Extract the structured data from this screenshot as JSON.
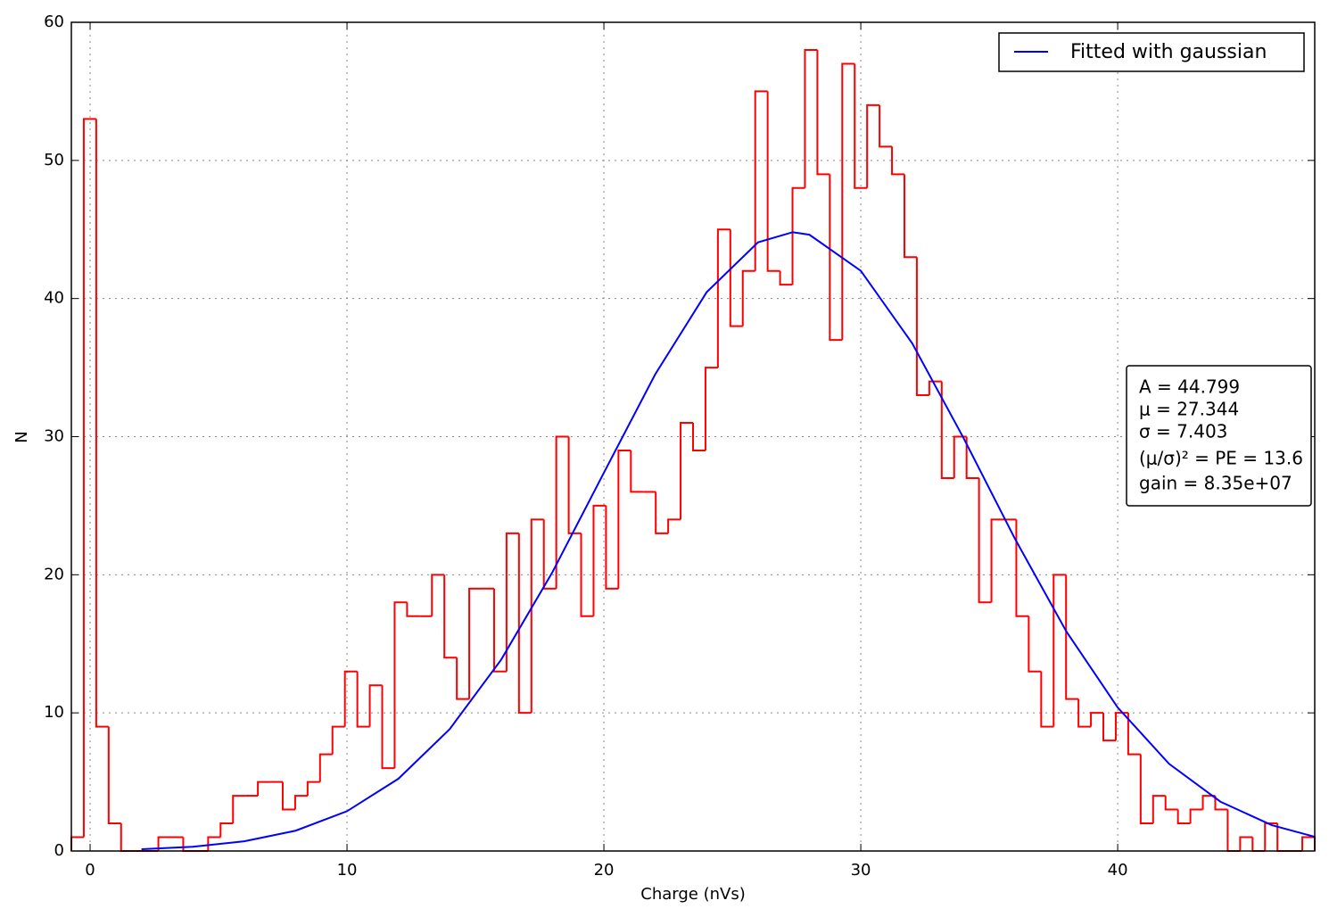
{
  "chart_data": {
    "type": "histogram",
    "xlabel": "Charge (nVs)",
    "ylabel": "N",
    "color": "#ff0000",
    "bins": [
      -0.73,
      -0.246,
      0.238,
      0.722,
      1.206,
      1.69,
      2.174,
      2.658,
      3.142,
      3.626,
      4.11,
      4.594,
      5.078,
      5.562,
      6.046,
      6.53,
      7.014,
      7.498,
      7.982,
      8.466,
      8.95,
      9.434,
      9.918,
      10.402,
      10.886,
      11.37,
      11.854,
      12.338,
      12.822,
      13.306,
      13.79,
      14.274,
      14.758,
      15.242,
      15.726,
      16.21,
      16.694,
      17.178,
      17.662,
      18.146,
      18.63,
      19.114,
      19.598,
      20.082,
      20.566,
      21.05,
      21.534,
      22.018,
      22.502,
      22.986,
      23.47,
      23.954,
      24.438,
      24.922,
      25.406,
      25.89,
      26.374,
      26.858,
      27.342,
      27.826,
      28.31,
      28.794,
      29.278,
      29.762,
      30.246,
      30.73,
      31.214,
      31.698,
      32.182,
      32.666,
      33.15,
      33.634,
      34.118,
      34.602,
      35.086,
      35.57,
      36.054,
      36.538,
      37.022,
      37.506,
      37.99,
      38.474,
      38.958,
      39.442,
      39.926,
      40.41,
      40.894,
      41.378,
      41.862,
      42.346,
      42.83,
      43.314,
      43.798,
      44.282,
      44.766,
      45.25,
      45.734,
      46.218,
      46.702,
      47.186,
      47.67
    ],
    "values": [
      1,
      53,
      9,
      2,
      0,
      0,
      0,
      1,
      1,
      0,
      0,
      1,
      2,
      4,
      4,
      5,
      5,
      3,
      4,
      5,
      7,
      9,
      13,
      9,
      12,
      6,
      18,
      17,
      17,
      20,
      14,
      11,
      19,
      19,
      13,
      23,
      10,
      24,
      19,
      30,
      23,
      17,
      25,
      19,
      29,
      26,
      26,
      23,
      24,
      31,
      29,
      35,
      45,
      38,
      42,
      55,
      42,
      41,
      48,
      58,
      49,
      37,
      57,
      48,
      54,
      51,
      49,
      43,
      33,
      34,
      27,
      30,
      27,
      18,
      24,
      24,
      17,
      13,
      9,
      20,
      11,
      9,
      10,
      8,
      10,
      7,
      2,
      4,
      3,
      2,
      3,
      4,
      3,
      0,
      1,
      0,
      2,
      0,
      0,
      1
    ],
    "fit": {
      "type": "line",
      "name": "Fitted with gaussian",
      "color": "#0000ff",
      "x": [
        2,
        4,
        6,
        8,
        10,
        12,
        14,
        16,
        18,
        20,
        22,
        24,
        26,
        27.344,
        28,
        30,
        32,
        34,
        36,
        38,
        40,
        42,
        44,
        46,
        47.67
      ],
      "values": [
        0.128,
        0.31,
        0.7,
        1.47,
        2.88,
        5.23,
        8.83,
        13.85,
        20.2,
        27.39,
        34.52,
        40.46,
        44.07,
        44.8,
        44.62,
        42.01,
        36.76,
        29.9,
        22.61,
        15.9,
        10.39,
        6.31,
        3.57,
        1.87,
        1.03
      ]
    },
    "annotation": [
      "A = 44.799",
      "μ = 27.344",
      "σ = 7.403",
      "(μ/σ)² = PE = 13.6",
      "gain = 8.35e+07"
    ],
    "xlim": [
      -0.73,
      47.67
    ],
    "xticks": [
      0,
      10,
      20,
      30,
      40
    ],
    "ylim": [
      0,
      60
    ],
    "yticks": [
      0,
      10,
      20,
      30,
      40,
      50,
      60
    ],
    "grid": true,
    "legend": "upper right"
  }
}
